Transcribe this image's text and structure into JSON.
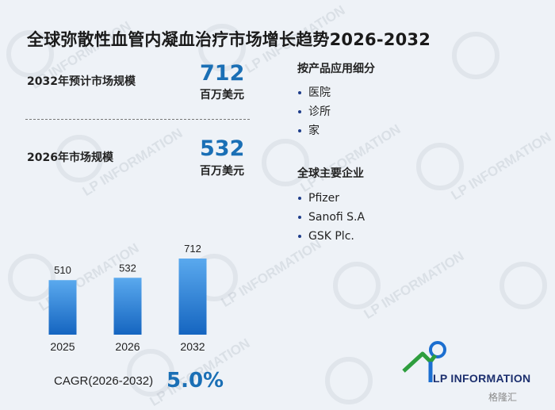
{
  "title": "全球弥散性血管内凝血治疗市场增长趋势2026-2032",
  "kpis": [
    {
      "label": "2032年预计市场规模",
      "value": "712",
      "unit": "百万美元"
    },
    {
      "label": "2026年市场规模",
      "value": "532",
      "unit": "百万美元"
    }
  ],
  "segments": {
    "title": "按产品应用细分",
    "items": [
      "医院",
      "诊所",
      "家"
    ]
  },
  "companies": {
    "title": "全球主要企业",
    "items": [
      "Pfizer",
      "Sanofi S.A",
      "GSK Plc."
    ]
  },
  "cagr": {
    "label": "CAGR(2026-2032)",
    "value": "5.0%"
  },
  "brand": {
    "name": "LP INFORMATION",
    "watermark": "LP INFORMATION"
  },
  "credit": "格隆汇",
  "colors": {
    "accent": "#1a6fb5",
    "bar_top": "#5aa9ee",
    "bar_bottom": "#1565c0",
    "logo_green": "#2e9e3e",
    "logo_blue": "#1c6fd0"
  },
  "chart_data": {
    "type": "bar",
    "categories": [
      "2025",
      "2026",
      "2032"
    ],
    "values": [
      510,
      532,
      712
    ],
    "ylim": [
      0,
      712
    ],
    "title": "",
    "xlabel": "",
    "ylabel": "",
    "grid": false
  }
}
